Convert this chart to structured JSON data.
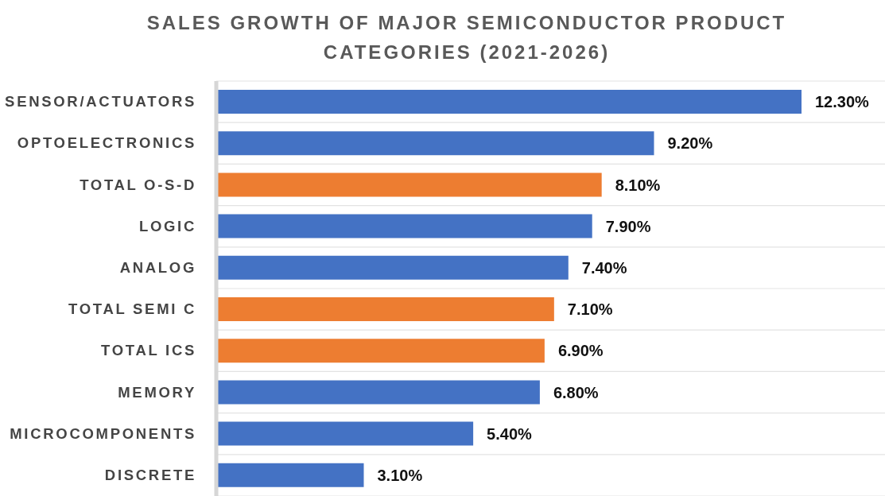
{
  "chart_data": {
    "type": "bar",
    "orientation": "horizontal",
    "title": "SALES GROWTH OF MAJOR SEMICONDUCTOR PRODUCT CATEGORIES (2021-2026)",
    "categories": [
      "SENSOR/ACTUATORS",
      "OPTOELECTRONICS",
      "TOTAL O-S-D",
      "LOGIC",
      "ANALOG",
      "TOTAL SEMI C",
      "TOTAL ICS",
      "MEMORY",
      "MICROCOMPONENTS",
      "DISCRETE"
    ],
    "values": [
      12.3,
      9.2,
      8.1,
      7.9,
      7.4,
      7.1,
      6.9,
      6.8,
      5.4,
      3.1
    ],
    "colors": [
      "#4472c4",
      "#4472c4",
      "#ed7d31",
      "#4472c4",
      "#4472c4",
      "#ed7d31",
      "#ed7d31",
      "#4472c4",
      "#4472c4",
      "#4472c4"
    ],
    "value_labels": [
      "12.30%",
      "9.20%",
      "8.10%",
      "7.90%",
      "7.40%",
      "7.10%",
      "6.90%",
      "6.80%",
      "5.40%",
      "3.10%"
    ],
    "grid": "y"
  }
}
